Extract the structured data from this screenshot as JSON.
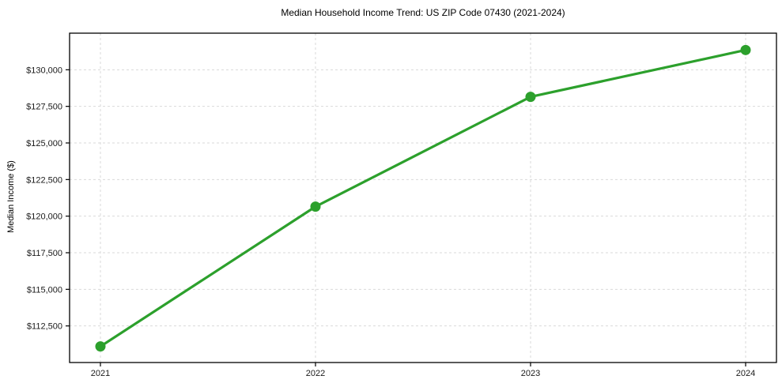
{
  "chart_data": {
    "type": "line",
    "title": "Median Household Income Trend: US ZIP Code 07430 (2021-2024)",
    "xlabel": "",
    "ylabel": "Median Income ($)",
    "x": [
      "2021",
      "2022",
      "2023",
      "2024"
    ],
    "values": [
      111100,
      120650,
      128150,
      131350
    ],
    "yticks": [
      112500,
      115000,
      117500,
      120000,
      122500,
      125000,
      127500,
      130000
    ],
    "ytick_prefix": "$",
    "ylim": [
      110000,
      132500
    ],
    "grid": true,
    "legend_position": "none",
    "line_color": "#2ca02c",
    "marker_color": "#2ca02c",
    "grid_color": "#d9d9d9",
    "axis_color": "#000000"
  }
}
